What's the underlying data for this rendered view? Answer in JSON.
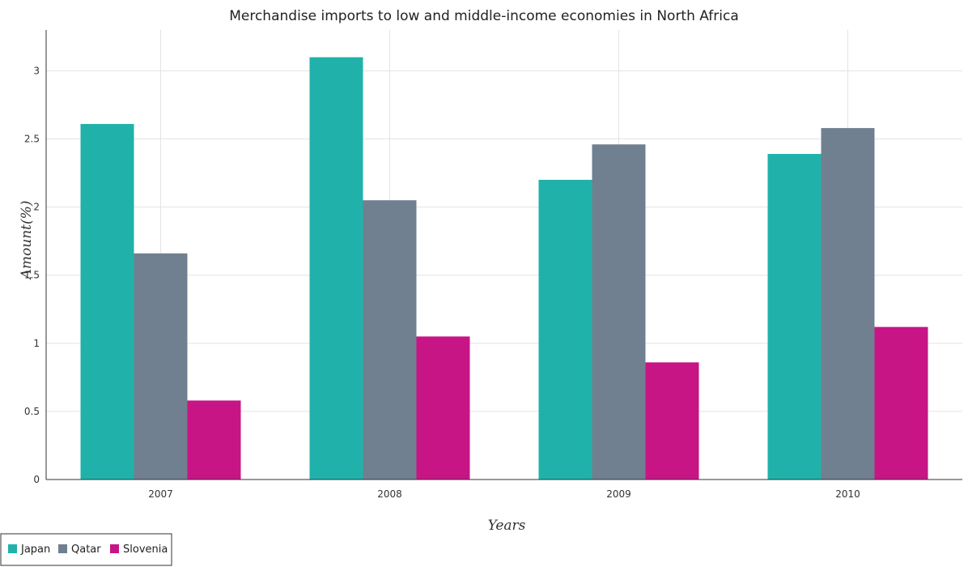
{
  "chart_data": {
    "type": "bar",
    "title": "Merchandise imports to low and middle-income economies in North Africa",
    "xlabel": "Years",
    "ylabel": "Amount(%)",
    "categories": [
      "2007",
      "2008",
      "2009",
      "2010"
    ],
    "ylim": [
      0,
      3.3
    ],
    "yticks": [
      "0",
      "0.5",
      "1",
      "1.5",
      "2",
      "2.5",
      "3"
    ],
    "ytick_values": [
      0,
      0.5,
      1,
      1.5,
      2,
      2.5,
      3
    ],
    "grid": true,
    "legend_position": "bottom-left",
    "series": [
      {
        "name": "Japan",
        "color": "#20b2aa",
        "values": [
          2.61,
          3.1,
          2.2,
          2.39
        ]
      },
      {
        "name": "Qatar",
        "color": "#708090",
        "values": [
          1.66,
          2.05,
          2.46,
          2.58
        ]
      },
      {
        "name": "Slovenia",
        "color": "#c71585",
        "values": [
          0.58,
          1.05,
          0.86,
          1.12
        ]
      }
    ]
  }
}
